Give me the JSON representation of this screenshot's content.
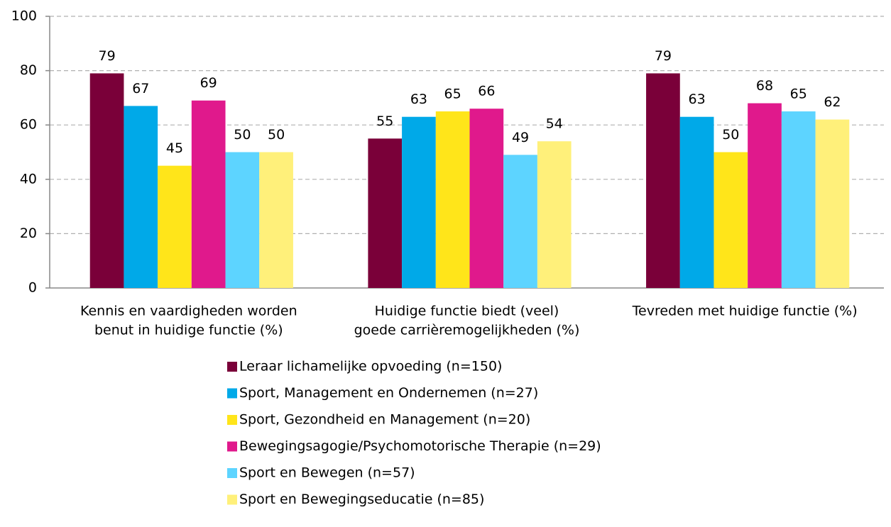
{
  "chart_data": {
    "type": "bar",
    "categories": [
      [
        "Kennis en vaardigheden worden",
        "benut in huidige functie (%)"
      ],
      [
        "Huidige functie biedt (veel)",
        "goede carrièremogelijkheden (%)"
      ],
      [
        "Tevreden met huidige functie (%)"
      ]
    ],
    "series": [
      {
        "name": "Leraar lichamelijke opvoeding (n=150)",
        "color": "#7a0039",
        "values": [
          79,
          55,
          79
        ]
      },
      {
        "name": "Sport, Management en Ondernemen (n=27)",
        "color": "#00a9e8",
        "values": [
          67,
          63,
          63
        ]
      },
      {
        "name": "Sport, Gezondheid en Management (n=20)",
        "color": "#ffe51a",
        "values": [
          45,
          65,
          50
        ]
      },
      {
        "name": "Bewegingsagogie/Psychomotorische Therapie (n=29)",
        "color": "#e0198c",
        "values": [
          69,
          66,
          68
        ]
      },
      {
        "name": "Sport en Bewegen (n=57)",
        "color": "#5dd4ff",
        "values": [
          50,
          49,
          65
        ]
      },
      {
        "name": "Sport en Bewegingseducatie (n=85)",
        "color": "#fff07a",
        "values": [
          50,
          54,
          62
        ]
      }
    ],
    "ylim": [
      0,
      100
    ],
    "yticks": [
      0,
      20,
      40,
      60,
      80,
      100
    ],
    "grid": true,
    "legend": "bottom"
  }
}
